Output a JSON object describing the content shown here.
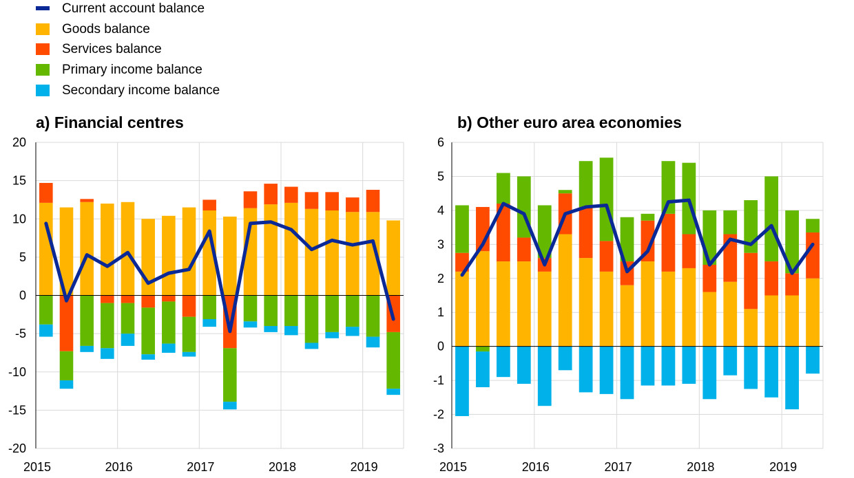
{
  "legend": {
    "current": "Current account balance",
    "goods": "Goods balance",
    "services": "Services balance",
    "primary": "Primary income balance",
    "secondary": "Secondary income balance"
  },
  "colors": {
    "current": "#0a2896",
    "goods": "#ffb400",
    "services": "#ff4b00",
    "primary": "#65b800",
    "secondary": "#00b1ea",
    "grid": "#d9d9d9",
    "axis": "#000000"
  },
  "chart_data": [
    {
      "type": "bar",
      "title": "a) Financial centres",
      "ylim": [
        -20,
        20
      ],
      "yticks": [
        20,
        15,
        10,
        5,
        0,
        -5,
        -10,
        -15,
        -20
      ],
      "xticks": [
        "2015",
        "2016",
        "2017",
        "2018",
        "2019"
      ],
      "grid": true,
      "categories": [
        "2015Q1",
        "2015Q2",
        "2015Q3",
        "2015Q4",
        "2016Q1",
        "2016Q2",
        "2016Q3",
        "2016Q4",
        "2017Q1",
        "2017Q2",
        "2017Q3",
        "2017Q4",
        "2018Q1",
        "2018Q2",
        "2018Q3",
        "2018Q4",
        "2019Q1",
        "2019Q2"
      ],
      "series": [
        {
          "name": "Goods balance",
          "key": "goods",
          "values": [
            12.1,
            11.5,
            12.2,
            12.0,
            12.2,
            10.0,
            10.4,
            11.5,
            11.1,
            10.3,
            11.4,
            11.9,
            12.1,
            11.3,
            11.1,
            10.9,
            10.9,
            9.8
          ]
        },
        {
          "name": "Services balance",
          "key": "services",
          "values": [
            2.6,
            -7.3,
            0.4,
            -1.0,
            -1.0,
            -1.6,
            -0.8,
            -2.8,
            1.4,
            -6.9,
            2.2,
            2.7,
            2.1,
            2.2,
            2.4,
            1.9,
            2.9,
            -4.8
          ]
        },
        {
          "name": "Primary income balance",
          "key": "primary",
          "values": [
            -3.8,
            -3.8,
            -6.6,
            -5.9,
            -4.0,
            -6.1,
            -5.5,
            -4.6,
            -3.1,
            -7.0,
            -3.4,
            -4.0,
            -4.0,
            -6.2,
            -4.8,
            -4.1,
            -5.4,
            -7.4
          ]
        },
        {
          "name": "Secondary income balance",
          "key": "secondary",
          "values": [
            -1.6,
            -1.1,
            -0.8,
            -1.4,
            -1.6,
            -0.7,
            -1.2,
            -0.6,
            -1.0,
            -1.0,
            -0.8,
            -0.8,
            -1.2,
            -0.8,
            -0.8,
            -1.2,
            -1.4,
            -0.8
          ]
        }
      ],
      "line": {
        "name": "Current account balance",
        "key": "current",
        "values": [
          9.4,
          -0.7,
          5.3,
          3.8,
          5.6,
          1.6,
          2.9,
          3.4,
          8.4,
          -4.7,
          9.4,
          9.6,
          8.6,
          6.0,
          7.2,
          6.6,
          7.1,
          -3.1
        ]
      }
    },
    {
      "type": "bar",
      "title": "b) Other euro area economies",
      "ylim": [
        -3,
        6
      ],
      "yticks": [
        6,
        5,
        4,
        3,
        2,
        1,
        0,
        -1,
        -2,
        -3
      ],
      "xticks": [
        "2015",
        "2016",
        "2017",
        "2018",
        "2019"
      ],
      "grid": true,
      "categories": [
        "2015Q1",
        "2015Q2",
        "2015Q3",
        "2015Q4",
        "2016Q1",
        "2016Q2",
        "2016Q3",
        "2016Q4",
        "2017Q1",
        "2017Q2",
        "2017Q3",
        "2017Q4",
        "2018Q1",
        "2018Q2",
        "2018Q3",
        "2018Q4",
        "2019Q1",
        "2019Q2"
      ],
      "series": [
        {
          "name": "Goods balance",
          "key": "goods",
          "values": [
            2.2,
            2.8,
            2.5,
            2.5,
            2.2,
            3.3,
            2.6,
            2.2,
            1.8,
            2.5,
            2.2,
            2.3,
            1.6,
            1.9,
            1.1,
            1.5,
            1.5,
            2.0
          ]
        },
        {
          "name": "Services balance",
          "key": "services",
          "values": [
            0.55,
            1.3,
            1.7,
            0.7,
            0.4,
            1.2,
            1.5,
            0.9,
            0.7,
            1.2,
            1.7,
            1.0,
            0.8,
            1.4,
            1.65,
            1.0,
            0.65,
            1.35
          ]
        },
        {
          "name": "Primary income balance",
          "key": "primary",
          "values": [
            1.4,
            -0.15,
            0.9,
            1.8,
            1.55,
            0.1,
            1.35,
            2.45,
            1.3,
            0.2,
            1.55,
            2.1,
            1.6,
            0.7,
            1.55,
            2.5,
            1.85,
            0.4
          ]
        },
        {
          "name": "Secondary income balance",
          "key": "secondary",
          "values": [
            -2.05,
            -1.05,
            -0.9,
            -1.1,
            -1.75,
            -0.7,
            -1.35,
            -1.4,
            -1.55,
            -1.15,
            -1.15,
            -1.1,
            -1.55,
            -0.85,
            -1.25,
            -1.5,
            -1.85,
            -0.8
          ]
        }
      ],
      "line": {
        "name": "Current account balance",
        "key": "current",
        "values": [
          2.1,
          3.0,
          4.2,
          3.9,
          2.4,
          3.9,
          4.1,
          4.15,
          2.2,
          2.8,
          4.25,
          4.3,
          2.4,
          3.15,
          3.0,
          3.55,
          2.15,
          3.0
        ]
      }
    }
  ]
}
